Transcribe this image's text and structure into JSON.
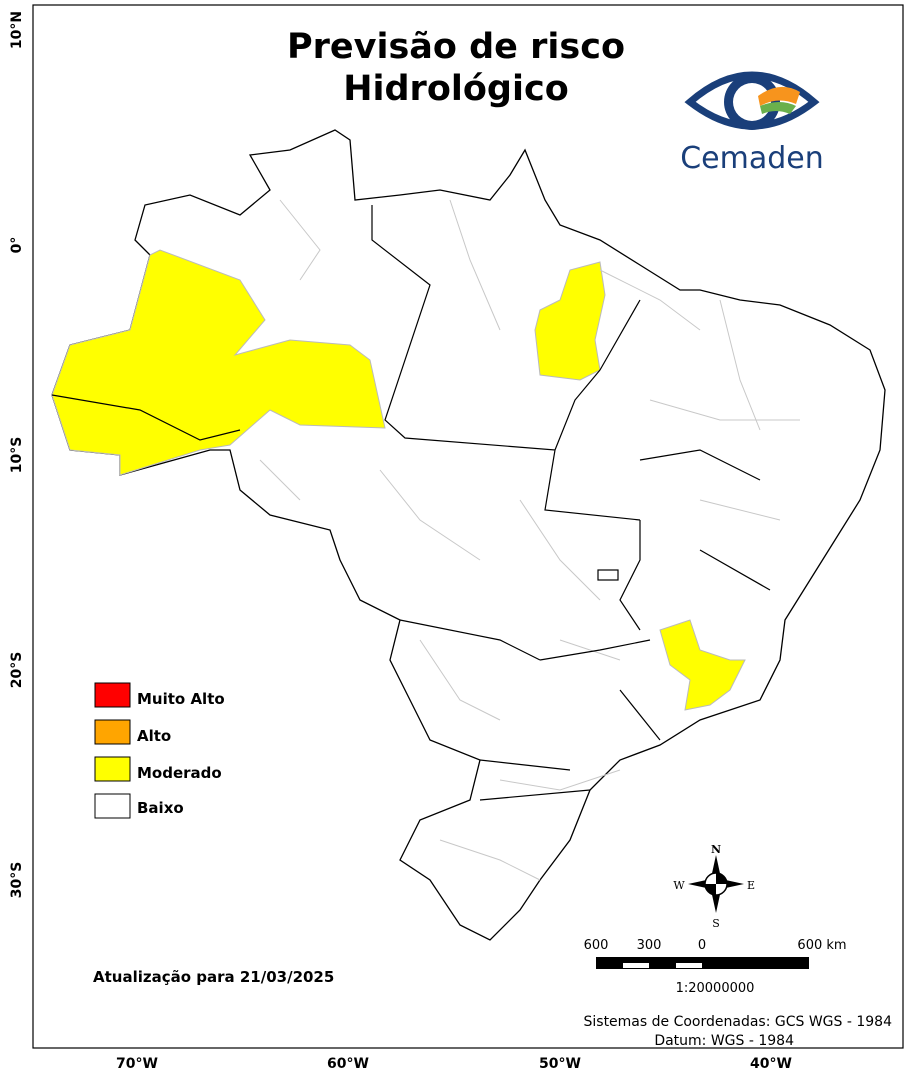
{
  "header": {
    "title_lines": [
      "Previsão de risco",
      "Hidrológico"
    ],
    "logo_text": "Cemaden"
  },
  "legend": {
    "items": [
      {
        "label": "Muito Alto",
        "color": "#ff0000"
      },
      {
        "label": "Alto",
        "color": "#ffa500"
      },
      {
        "label": "Moderado",
        "color": "#ffff00"
      },
      {
        "label": "Baixo",
        "color": "#ffffff"
      }
    ]
  },
  "update_note": "Atualização para 21/03/2025",
  "compass": {
    "north": "N",
    "south": "S",
    "east": "E",
    "west": "W"
  },
  "scale_bar": {
    "labels": [
      "600",
      "300",
      "0",
      "600 km"
    ],
    "ratio": "1:20000000"
  },
  "credits": [
    "Sistemas de Coordenadas: GCS WGS - 1984",
    "Datum: WGS - 1984"
  ],
  "grid_labels": {
    "latitudes": [
      "10°N",
      "0°",
      "10°S",
      "20°S",
      "30°S"
    ],
    "longitudes": [
      "70°W",
      "60°W",
      "50°W",
      "40°W"
    ]
  }
}
